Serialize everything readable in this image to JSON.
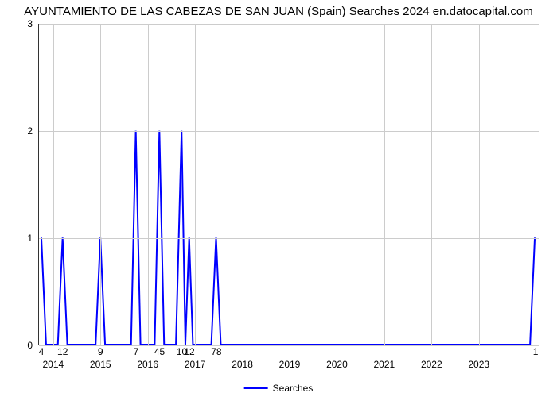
{
  "chart": {
    "type": "line",
    "title": "AYUNTAMIENTO DE LAS CABEZAS DE SAN JUAN (Spain) Searches 2024 en.datocapital.com",
    "title_fontsize": 15,
    "background_color": "#ffffff",
    "grid_color": "#cccccc",
    "axis_color": "#333333",
    "y": {
      "min": 0,
      "max": 3,
      "ticks": [
        0,
        1,
        2,
        3
      ],
      "label_fontsize": 12
    },
    "x": {
      "min": 2013.7,
      "max": 2024.3,
      "year_ticks": [
        2014,
        2015,
        2016,
        2017,
        2018,
        2019,
        2020,
        2021,
        2022,
        2023
      ],
      "label_fontsize": 12
    },
    "series": {
      "name": "Searches",
      "color": "#0000ff",
      "line_width": 2,
      "points": [
        {
          "x": 2013.75,
          "y": 1,
          "label": "4"
        },
        {
          "x": 2013.85,
          "y": 0
        },
        {
          "x": 2014.1,
          "y": 0
        },
        {
          "x": 2014.2,
          "y": 1,
          "label": "12"
        },
        {
          "x": 2014.3,
          "y": 0
        },
        {
          "x": 2014.9,
          "y": 0
        },
        {
          "x": 2015.0,
          "y": 1,
          "label": "9"
        },
        {
          "x": 2015.1,
          "y": 0
        },
        {
          "x": 2015.65,
          "y": 0
        },
        {
          "x": 2015.75,
          "y": 2,
          "label": "7"
        },
        {
          "x": 2015.85,
          "y": 0
        },
        {
          "x": 2016.15,
          "y": 0
        },
        {
          "x": 2016.25,
          "y": 2,
          "label": "45"
        },
        {
          "x": 2016.35,
          "y": 0
        },
        {
          "x": 2016.6,
          "y": 0
        },
        {
          "x": 2016.72,
          "y": 2,
          "label": "10"
        },
        {
          "x": 2016.8,
          "y": 0
        },
        {
          "x": 2016.88,
          "y": 1,
          "label": "12"
        },
        {
          "x": 2016.96,
          "y": 0
        },
        {
          "x": 2017.35,
          "y": 0
        },
        {
          "x": 2017.45,
          "y": 1,
          "label": "78"
        },
        {
          "x": 2017.55,
          "y": 0
        },
        {
          "x": 2024.1,
          "y": 0
        },
        {
          "x": 2024.2,
          "y": 1,
          "label": "1"
        }
      ]
    },
    "legend": {
      "label": "Searches",
      "color": "#0000ff",
      "position": "bottom-center",
      "fontsize": 12
    }
  }
}
